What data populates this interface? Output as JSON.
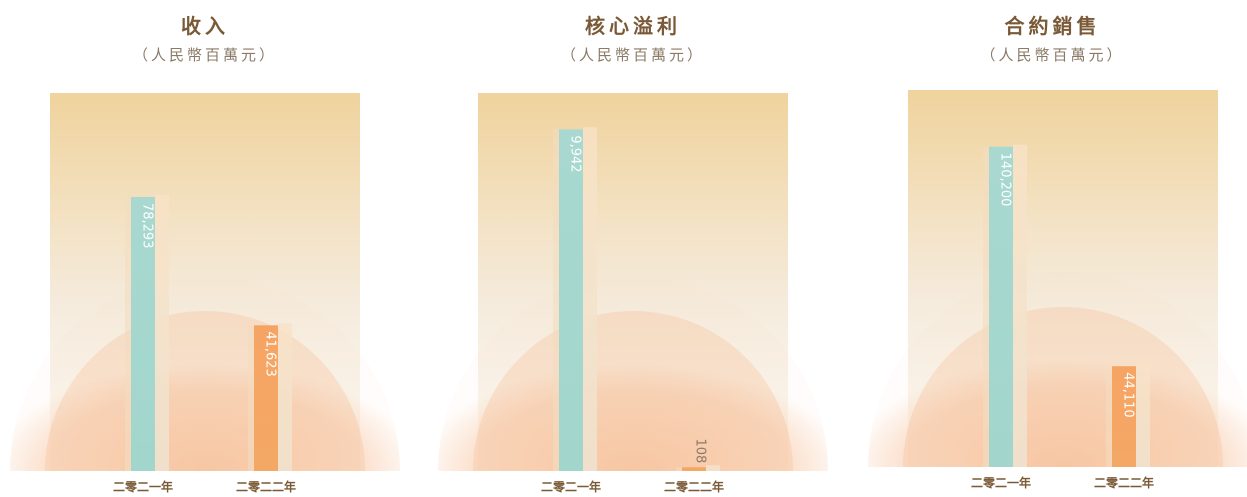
{
  "colors": {
    "background_top": "#f0d39d",
    "background_bottom": "#fdfbf7",
    "arc": "#f6b98e",
    "bar_2021": "#a8d8d0",
    "bar_2022": "#f6a463",
    "label": "#7a5a36"
  },
  "chart_data": [
    {
      "type": "bar",
      "title": "收入",
      "unit": "（人民幣百萬元）",
      "categories": [
        "二零二一年",
        "二零二二年"
      ],
      "values": [
        78293,
        41623
      ],
      "value_labels": [
        "78,293",
        "41,623"
      ],
      "ylim": [
        0,
        108000
      ]
    },
    {
      "type": "bar",
      "title": "核心溢利",
      "unit": "（人民幣百萬元）",
      "categories": [
        "二零二一年",
        "二零二二年"
      ],
      "values": [
        9942,
        108
      ],
      "value_labels": [
        "9,942",
        "108"
      ],
      "ylim": [
        0,
        11000
      ]
    },
    {
      "type": "bar",
      "title": "合約銷售",
      "unit": "（人民幣百萬元）",
      "categories": [
        "二零二一年",
        "二零二二年"
      ],
      "values": [
        140200,
        44110
      ],
      "value_labels": [
        "140,200",
        "44,110"
      ],
      "ylim": [
        0,
        165000
      ]
    }
  ]
}
